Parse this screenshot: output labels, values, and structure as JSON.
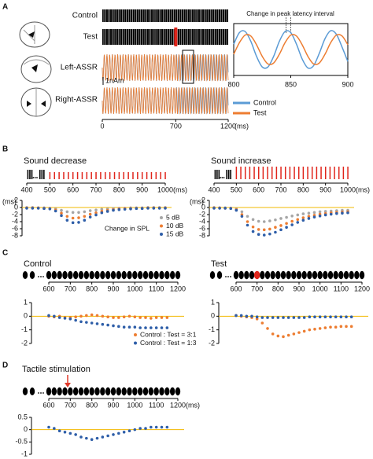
{
  "panel_labels": [
    "A",
    "B",
    "C",
    "D"
  ],
  "chart_data": [
    {
      "type": "stimulus-waveforms",
      "row_labels": [
        "Control",
        "Test",
        "Left-ASSR",
        "Right-ASSR"
      ],
      "scale_bar": "1nAm",
      "xlim": [
        0,
        1200
      ],
      "xticks": [
        0,
        700,
        1200
      ],
      "x_unit": "(ms)"
    },
    {
      "type": "line",
      "title": "Change in peak latency interval",
      "x": [
        800,
        805,
        810,
        815,
        820,
        825,
        830,
        835,
        840,
        845,
        850,
        855,
        860,
        865,
        870,
        875,
        880,
        885,
        890,
        895,
        900
      ],
      "series": [
        {
          "name": "Control",
          "color": "#5b9bd5",
          "values": [
            0.28,
            0.89,
            0.95,
            0.43,
            -0.36,
            -0.92,
            -0.92,
            -0.36,
            0.43,
            0.95,
            0.89,
            0.28,
            -0.5,
            -0.97,
            -0.85,
            -0.2,
            0.57,
            0.99,
            0.8,
            0.12,
            -0.63
          ]
        },
        {
          "name": "Test",
          "color": "#ed7d31",
          "values": [
            -0.25,
            0.36,
            0.76,
            0.71,
            0.25,
            -0.36,
            -0.76,
            -0.71,
            -0.25,
            0.36,
            0.76,
            0.71,
            0.25,
            -0.36,
            -0.76,
            -0.71,
            -0.25,
            0.36,
            0.76,
            0.71,
            0.25
          ]
        }
      ],
      "xlim": [
        800,
        900
      ],
      "xticks": [
        800,
        850,
        900
      ],
      "ylim": [
        -1.2,
        1.2
      ]
    },
    {
      "type": "scatter",
      "title": "Sound decrease",
      "x": [
        400,
        425,
        450,
        475,
        500,
        525,
        550,
        575,
        600,
        625,
        650,
        675,
        700,
        725,
        750,
        775,
        800,
        825,
        850,
        875,
        900,
        925,
        950,
        975,
        1000
      ],
      "series": [
        {
          "name": "5 dB",
          "color": "#a6a6a6",
          "values": [
            0,
            0,
            -0.1,
            -0.1,
            -0.2,
            -0.4,
            -0.8,
            -1.2,
            -1.4,
            -1.4,
            -1.2,
            -0.9,
            -0.7,
            -0.5,
            -0.4,
            -0.3,
            -0.2,
            -0.2,
            -0.1,
            -0.1,
            -0.1,
            0,
            0,
            0,
            0
          ]
        },
        {
          "name": "10 dB",
          "color": "#ed7d31",
          "values": [
            -0.1,
            -0.1,
            -0.1,
            -0.2,
            -0.3,
            -0.7,
            -1.6,
            -2.5,
            -3.0,
            -2.9,
            -2.5,
            -1.9,
            -1.5,
            -1.1,
            -0.8,
            -0.6,
            -0.4,
            -0.3,
            -0.3,
            -0.2,
            -0.2,
            -0.1,
            -0.1,
            -0.1,
            -0.1
          ]
        },
        {
          "name": "15 dB",
          "color": "#2e5ea8",
          "values": [
            -0.2,
            -0.2,
            -0.2,
            -0.3,
            -0.4,
            -1.0,
            -2.3,
            -3.6,
            -4.3,
            -4.2,
            -3.6,
            -2.7,
            -2.1,
            -1.5,
            -1.1,
            -0.8,
            -0.6,
            -0.5,
            -0.4,
            -0.3,
            -0.3,
            -0.2,
            -0.2,
            -0.2,
            -0.2
          ]
        }
      ],
      "xlim": [
        400,
        1000
      ],
      "xticks": [
        400,
        500,
        600,
        700,
        800,
        900,
        1000
      ],
      "x_unit": "(ms)",
      "y_unit": "(ms)",
      "ylim": [
        -8,
        2
      ],
      "yticks": [
        2,
        0,
        -2,
        -4,
        -6,
        -8
      ],
      "zero_line_color": "#f2b800",
      "legend": true,
      "legend_title": "Change in SPL"
    },
    {
      "type": "scatter",
      "title": "Sound increase",
      "x": [
        400,
        425,
        450,
        475,
        500,
        525,
        550,
        575,
        600,
        625,
        650,
        675,
        700,
        725,
        750,
        775,
        800,
        825,
        850,
        875,
        900,
        925,
        950,
        975,
        1000
      ],
      "series": [
        {
          "color": "#a6a6a6",
          "values": [
            0,
            -0.1,
            -0.1,
            -0.2,
            -0.4,
            -1.2,
            -2.5,
            -3.4,
            -3.9,
            -4.0,
            -3.8,
            -3.5,
            -3.1,
            -2.8,
            -2.4,
            -2.1,
            -1.8,
            -1.6,
            -1.4,
            -1.2,
            -1.1,
            -1.0,
            -0.9,
            -0.8,
            -0.8
          ]
        },
        {
          "color": "#ed7d31",
          "values": [
            -0.1,
            -0.1,
            -0.2,
            -0.2,
            -0.6,
            -2.0,
            -4.0,
            -5.5,
            -6.2,
            -6.3,
            -6.1,
            -5.6,
            -5.1,
            -4.5,
            -3.9,
            -3.4,
            -2.9,
            -2.5,
            -2.2,
            -1.9,
            -1.7,
            -1.5,
            -1.4,
            -1.3,
            -1.2
          ]
        },
        {
          "color": "#2e5ea8",
          "values": [
            -0.2,
            -0.2,
            -0.2,
            -0.3,
            -0.8,
            -2.5,
            -5.0,
            -6.8,
            -7.6,
            -7.8,
            -7.5,
            -7.0,
            -6.3,
            -5.6,
            -4.9,
            -4.2,
            -3.6,
            -3.1,
            -2.7,
            -2.4,
            -2.1,
            -1.9,
            -1.7,
            -1.6,
            -1.5
          ]
        }
      ],
      "xlim": [
        400,
        1000
      ],
      "xticks": [
        400,
        500,
        600,
        700,
        800,
        900,
        1000
      ],
      "x_unit": "(ms)",
      "y_unit": "(ms)",
      "ylim": [
        -8,
        2
      ],
      "yticks": [
        2,
        0,
        -2,
        -4,
        -6,
        -8
      ],
      "zero_line_color": "#f2b800",
      "legend": false
    },
    {
      "type": "scatter",
      "title": "Control",
      "x": [
        600,
        625,
        650,
        675,
        700,
        725,
        750,
        775,
        800,
        825,
        850,
        875,
        900,
        925,
        950,
        975,
        1000,
        1025,
        1050,
        1075,
        1100,
        1125,
        1150
      ],
      "series": [
        {
          "name": "Control : Test = 3:1",
          "color": "#ed7d31",
          "values": [
            0,
            -0.05,
            0,
            -0.1,
            -0.1,
            -0.05,
            0,
            0.05,
            0.1,
            0.05,
            0,
            -0.05,
            -0.1,
            -0.1,
            -0.05,
            0,
            -0.05,
            -0.1,
            -0.1,
            -0.15,
            -0.1,
            -0.1,
            -0.1
          ]
        },
        {
          "name": "Control : Test = 1:3",
          "color": "#2e5ea8",
          "values": [
            0.05,
            0,
            -0.1,
            -0.15,
            -0.2,
            -0.3,
            -0.4,
            -0.45,
            -0.5,
            -0.55,
            -0.6,
            -0.65,
            -0.7,
            -0.75,
            -0.8,
            -0.8,
            -0.8,
            -0.85,
            -0.85,
            -0.85,
            -0.85,
            -0.85,
            -0.85
          ]
        }
      ],
      "xlim": [
        600,
        1200
      ],
      "xticks": [
        600,
        700,
        800,
        900,
        1000,
        1100,
        1200
      ],
      "ylim": [
        -2,
        1
      ],
      "yticks": [
        1,
        0,
        -1,
        -2
      ],
      "zero_line_color": "#f2b800",
      "legend": true
    },
    {
      "type": "scatter",
      "title": "Test",
      "x": [
        600,
        625,
        650,
        675,
        700,
        725,
        750,
        775,
        800,
        825,
        850,
        875,
        900,
        925,
        950,
        975,
        1000,
        1025,
        1050,
        1075,
        1100,
        1125,
        1150
      ],
      "series": [
        {
          "color": "#ed7d31",
          "values": [
            0.05,
            0,
            -0.05,
            -0.1,
            -0.2,
            -0.5,
            -0.9,
            -1.3,
            -1.45,
            -1.5,
            -1.4,
            -1.3,
            -1.2,
            -1.1,
            -1.0,
            -0.95,
            -0.9,
            -0.85,
            -0.8,
            -0.8,
            -0.75,
            -0.75,
            -0.75
          ]
        },
        {
          "color": "#2e5ea8",
          "values": [
            0.05,
            0.05,
            0,
            0,
            -0.05,
            -0.1,
            -0.1,
            -0.1,
            -0.1,
            -0.1,
            -0.1,
            -0.1,
            -0.1,
            -0.1,
            -0.05,
            -0.05,
            -0.05,
            -0.05,
            -0.05,
            -0.05,
            -0.05,
            -0.05,
            -0.05
          ]
        }
      ],
      "xlim": [
        600,
        1200
      ],
      "xticks": [
        600,
        700,
        800,
        900,
        1000,
        1100,
        1200
      ],
      "ylim": [
        -2,
        1
      ],
      "yticks": [
        1,
        0,
        -1,
        -2
      ],
      "zero_line_color": "#f2b800",
      "legend": false
    },
    {
      "type": "scatter",
      "title": "Tactile stimulation",
      "x": [
        600,
        625,
        650,
        675,
        700,
        725,
        750,
        775,
        800,
        825,
        850,
        875,
        900,
        925,
        950,
        975,
        1000,
        1025,
        1050,
        1075,
        1100,
        1125,
        1150
      ],
      "series": [
        {
          "color": "#2e5ea8",
          "values": [
            0.1,
            0.05,
            -0.05,
            -0.1,
            -0.15,
            -0.2,
            -0.3,
            -0.35,
            -0.4,
            -0.35,
            -0.3,
            -0.25,
            -0.2,
            -0.15,
            -0.1,
            -0.05,
            0,
            0.05,
            0.05,
            0.1,
            0.1,
            0.1,
            0.1
          ]
        }
      ],
      "xlim": [
        600,
        1200
      ],
      "xticks": [
        600,
        700,
        800,
        900,
        1000,
        1100,
        1200
      ],
      "x_unit": "(ms)",
      "ylim": [
        -1,
        0.5
      ],
      "yticks": [
        0.5,
        0,
        -0.5,
        -1
      ],
      "zero_line_color": "#f2b800",
      "legend": false
    }
  ]
}
